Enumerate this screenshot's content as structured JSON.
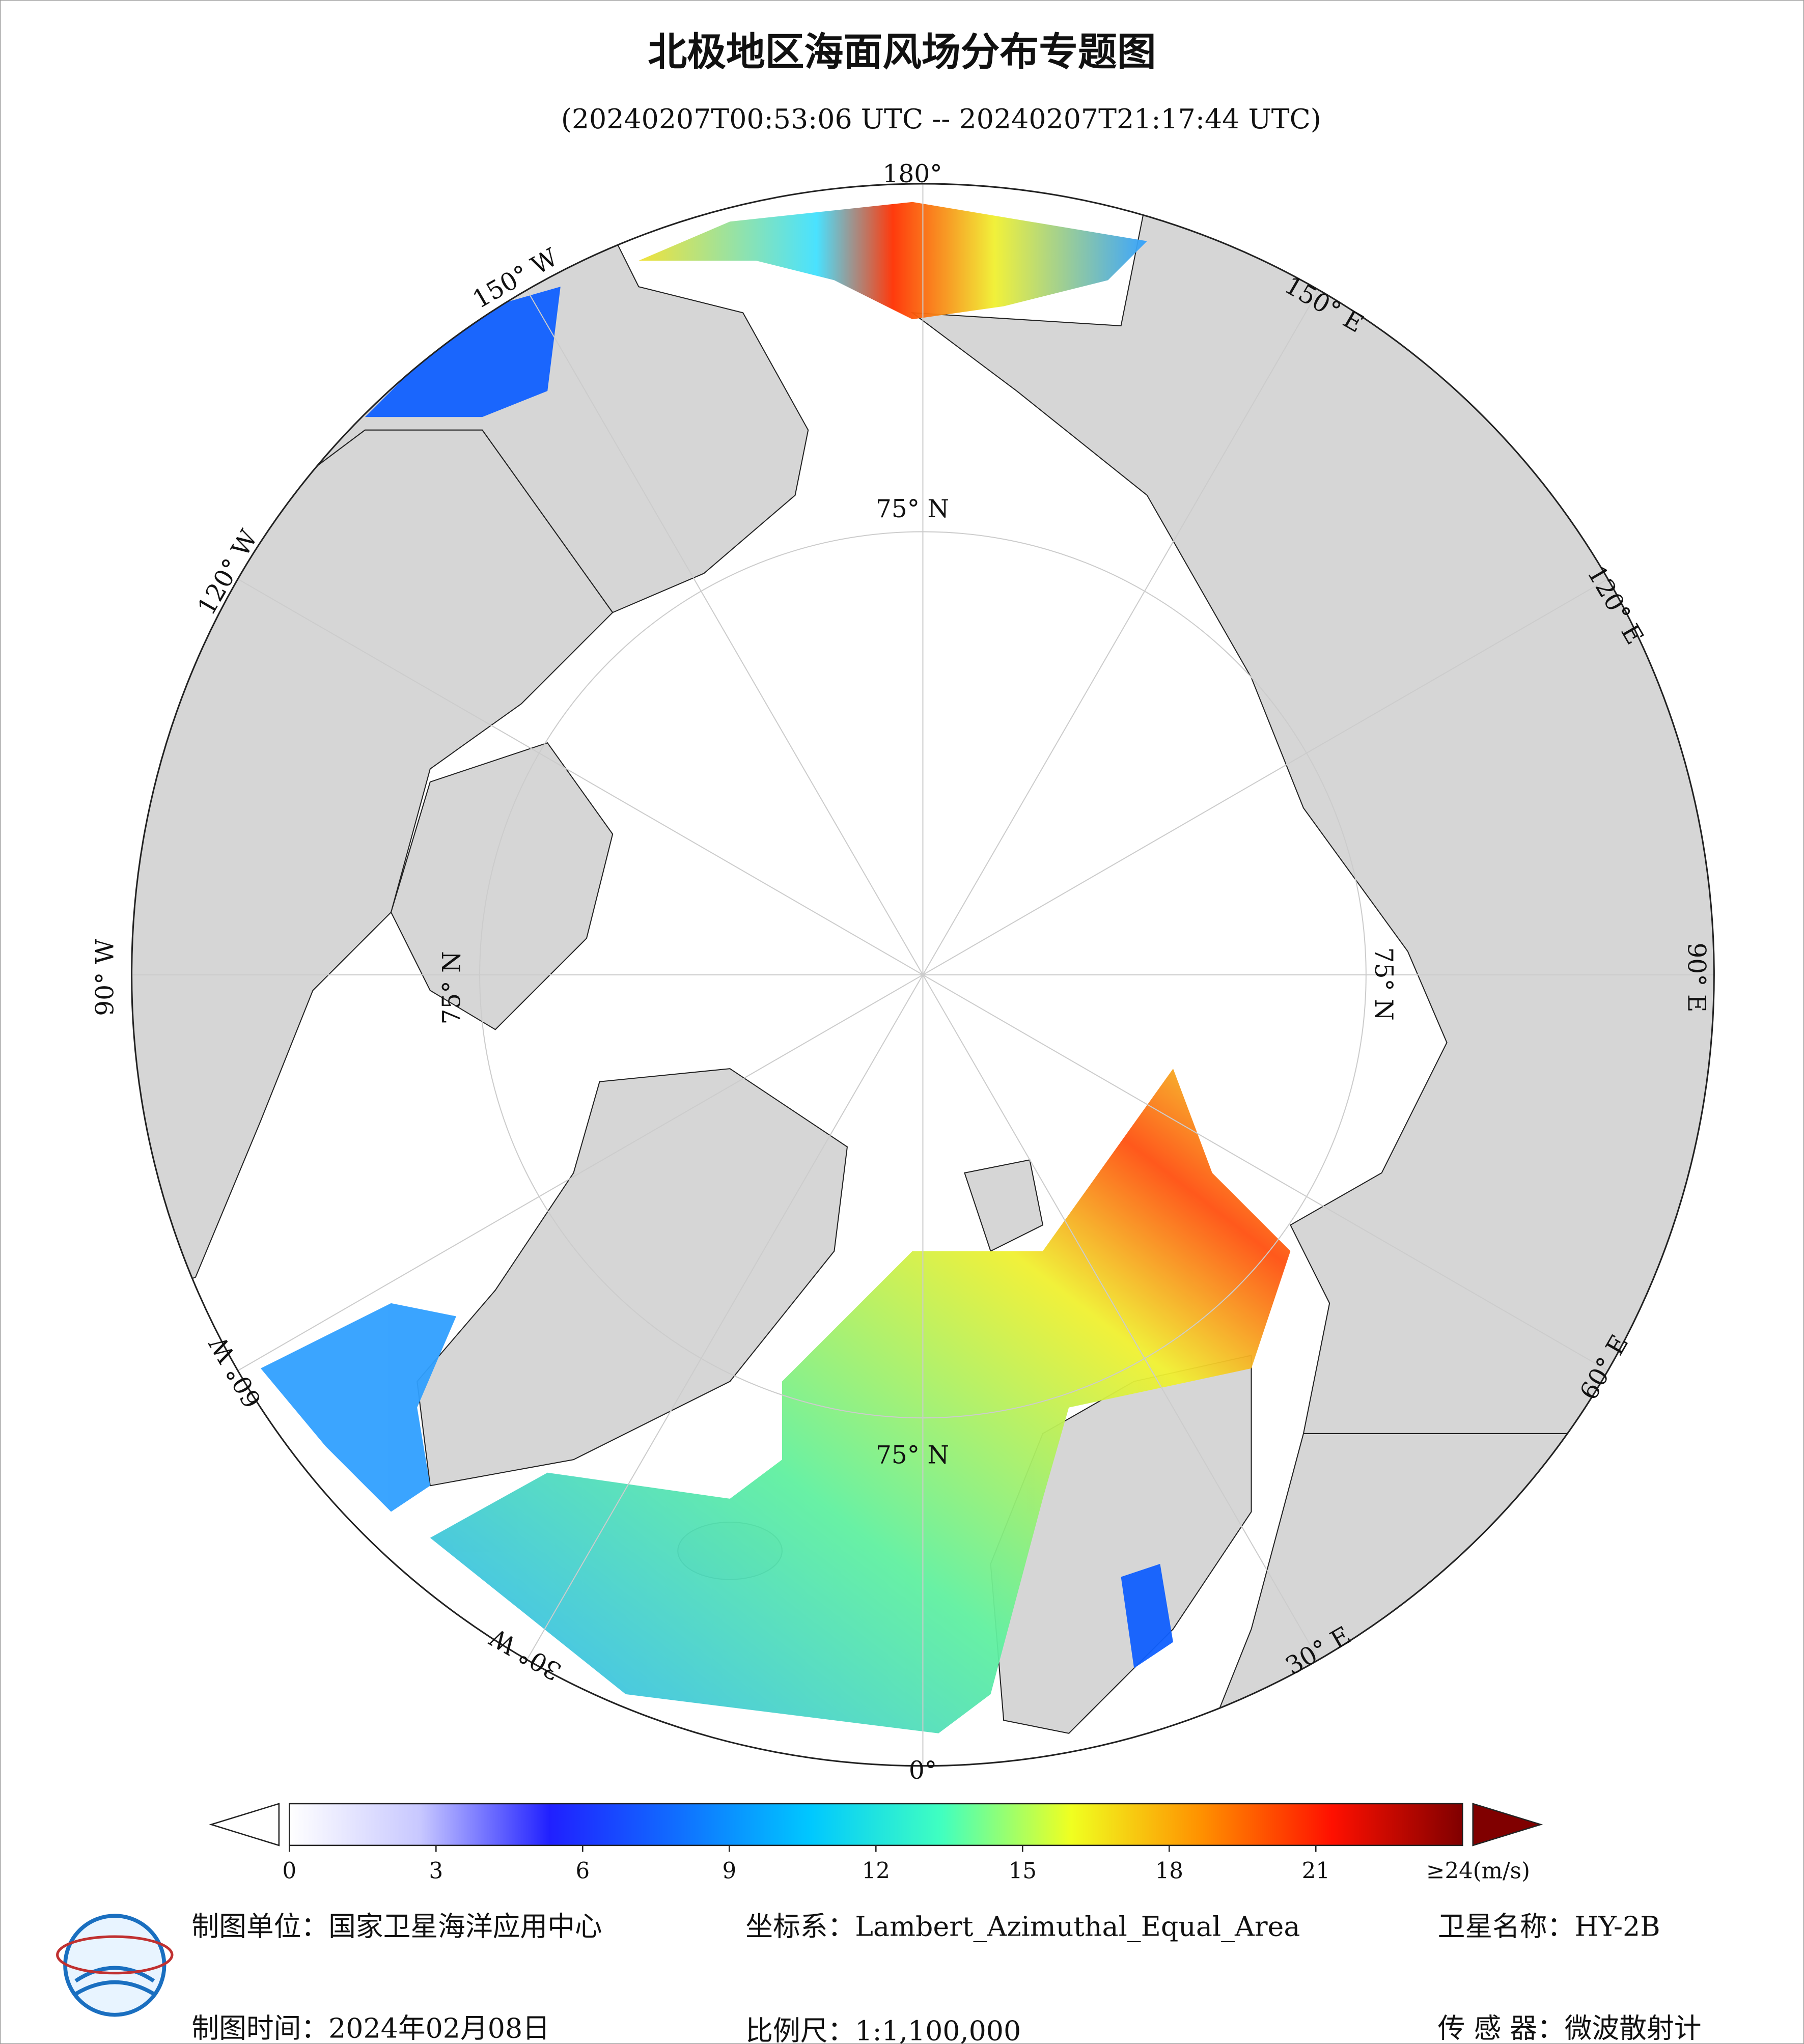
{
  "header": {
    "title": "北极地区海面风场分布专题图",
    "subtitle": "(20240207T00:53:06 UTC -- 20240207T21:17:44 UTC)"
  },
  "map": {
    "meridian_labels": [
      "180°",
      "150° E",
      "120° E",
      "90° E",
      "60° E",
      "30° E",
      "0°",
      "30° W",
      "60° W",
      "90° W",
      "120° W",
      "150° W"
    ],
    "latitude_labels": [
      "75° N",
      "75° N",
      "75° N",
      "75° N"
    ]
  },
  "colorbar": {
    "range": [
      0,
      24
    ],
    "ticks": [
      0,
      3,
      6,
      9,
      12,
      15,
      18,
      21
    ],
    "max_label": "≥24(m/s)",
    "colors": [
      "#ffffff",
      "#c8c8ff",
      "#2020ff",
      "#1070ff",
      "#00c8ff",
      "#40ffc0",
      "#f0ff20",
      "#ff9000",
      "#ff1000",
      "#800000"
    ]
  },
  "footer": {
    "unit": "制图单位：国家卫星海洋应用中心",
    "coord": "坐标系：Lambert_Azimuthal_Equal_Area",
    "satellite": "卫星名称：HY-2B",
    "date": "制图时间：2024年02月08日",
    "scale": "比例尺：1:1,100,000",
    "sensor": "传 感 器：微波散射计"
  }
}
